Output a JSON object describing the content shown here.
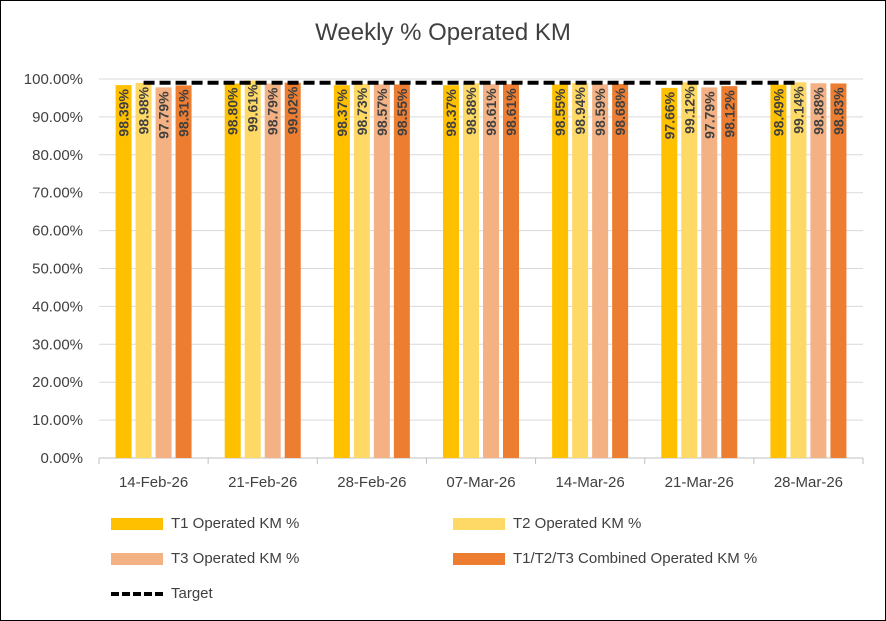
{
  "chart_data": {
    "type": "bar",
    "title": "Weekly % Operated KM",
    "categories": [
      "14-Feb-26",
      "21-Feb-26",
      "28-Feb-26",
      "07-Mar-26",
      "14-Mar-26",
      "21-Mar-26",
      "28-Mar-26"
    ],
    "series": [
      {
        "name": "T1 Operated KM %",
        "color": "#FFC000",
        "values": [
          98.39,
          98.8,
          98.37,
          98.37,
          98.55,
          97.66,
          98.49
        ]
      },
      {
        "name": "T2 Operated KM %",
        "color": "#FFD966",
        "values": [
          98.98,
          99.61,
          98.73,
          98.88,
          98.94,
          99.12,
          99.14
        ]
      },
      {
        "name": "T3 Operated KM %",
        "color": "#F4B183",
        "values": [
          97.79,
          98.79,
          98.57,
          98.61,
          98.59,
          97.79,
          98.88
        ]
      },
      {
        "name": "T1/T2/T3 Combined Operated KM %",
        "color": "#ED7D31",
        "values": [
          98.31,
          99.02,
          98.55,
          98.61,
          98.68,
          98.12,
          98.83
        ]
      }
    ],
    "target": {
      "name": "Target",
      "value": 99.0,
      "style": "dashed",
      "color": "#000000"
    },
    "ylim": [
      0,
      100
    ],
    "yticks": [
      "0.00%",
      "10.00%",
      "20.00%",
      "30.00%",
      "40.00%",
      "50.00%",
      "60.00%",
      "70.00%",
      "80.00%",
      "90.00%",
      "100.00%"
    ],
    "grid": true,
    "legend_position": "bottom",
    "data_labels": [
      "98.39%",
      "98.98%",
      "97.79%",
      "98.31%",
      "98.80%",
      "99.61%",
      "98.79%",
      "99.02%",
      "98.37%",
      "98.73%",
      "98.57%",
      "98.55%",
      "98.37%",
      "98.88%",
      "98.61%",
      "98.61%",
      "98.55%",
      "98.94%",
      "98.59%",
      "98.68%",
      "97.66%",
      "99.12%",
      "97.79%",
      "98.12%",
      "98.49%",
      "99.14%",
      "98.88%",
      "98.83%"
    ]
  }
}
